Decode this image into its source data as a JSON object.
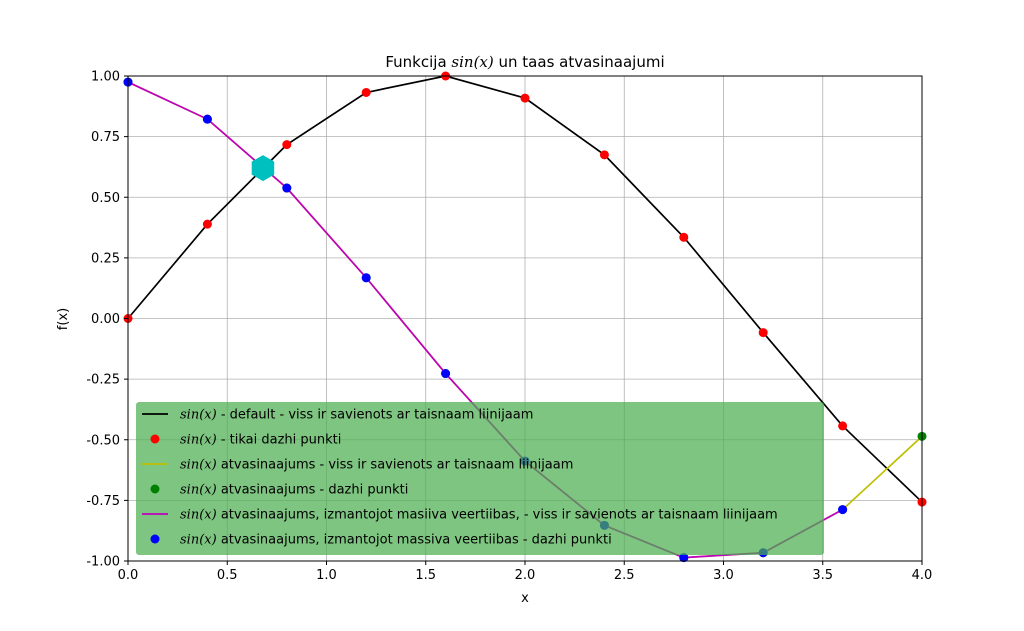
{
  "chart_data": {
    "type": "line",
    "title_prefix": "Funkcija ",
    "title_math": "sin(x)",
    "title_suffix": " un taas atvasinaajumi",
    "xlabel": "x",
    "ylabel": "f(x)",
    "xlim": [
      0.0,
      4.0
    ],
    "ylim": [
      -1.0,
      1.0
    ],
    "xticks": [
      "0.0",
      "0.5",
      "1.0",
      "1.5",
      "2.0",
      "2.5",
      "3.0",
      "3.5",
      "4.0"
    ],
    "yticks": [
      "1.00",
      "0.75",
      "0.50",
      "0.25",
      "0.00",
      "-0.25",
      "-0.50",
      "-0.75",
      "-1.00"
    ],
    "grid": true,
    "legend_position": "lower-left",
    "legend_background": "#4CAF50",
    "series": [
      {
        "label_math": "sin(x)",
        "label_text": " - default - viss ir savienots ar taisnaam liinijaam",
        "style": "line",
        "color": "#000000",
        "x": [
          0.0,
          0.4,
          0.8,
          1.2,
          1.6,
          2.0,
          2.4,
          2.8,
          3.2,
          3.6,
          4.0
        ],
        "y": [
          0.0,
          0.389,
          0.717,
          0.932,
          1.0,
          0.909,
          0.675,
          0.335,
          -0.058,
          -0.443,
          -0.757
        ]
      },
      {
        "label_math": "sin(x)",
        "label_text": " - tikai dazhi punkti",
        "style": "markers",
        "color": "#ff0000",
        "x": [
          0.0,
          0.4,
          0.8,
          1.2,
          1.6,
          2.0,
          2.4,
          2.8,
          3.2,
          3.6,
          4.0
        ],
        "y": [
          0.0,
          0.389,
          0.717,
          0.932,
          1.0,
          0.909,
          0.675,
          0.335,
          -0.058,
          -0.443,
          -0.757
        ]
      },
      {
        "label_math": "sin(x)",
        "label_text": " atvasinaajums - viss ir savienots ar taisnaam liinijaam",
        "style": "line",
        "color": "#bfbf00",
        "x": [
          0.0,
          0.4,
          0.8,
          1.2,
          1.6,
          2.0,
          2.4,
          2.8,
          3.2,
          3.6,
          4.0
        ],
        "y": [
          0.975,
          0.822,
          0.538,
          0.168,
          -0.227,
          -0.588,
          -0.853,
          -0.986,
          -0.966,
          -0.788,
          -0.486
        ]
      },
      {
        "label_math": "sin(x)",
        "label_text": " atvasinaajums - dazhi punkti",
        "style": "markers",
        "color": "#008000",
        "x": [
          0.0,
          0.4,
          0.8,
          1.2,
          1.6,
          2.0,
          2.4,
          2.8,
          3.2,
          3.6,
          4.0
        ],
        "y": [
          0.975,
          0.822,
          0.538,
          0.168,
          -0.227,
          -0.588,
          -0.853,
          -0.986,
          -0.966,
          -0.788,
          -0.486
        ]
      },
      {
        "label_math": "sin(x)",
        "label_text": " atvasinaajums, izmantojot masiiva veertiibas, - viss ir savienots ar taisnaam liinijaam",
        "style": "line",
        "color": "#bf00bf",
        "x": [
          0.0,
          0.4,
          0.8,
          1.2,
          1.6,
          2.0,
          2.4,
          2.8,
          3.2,
          3.6
        ],
        "y": [
          0.975,
          0.822,
          0.538,
          0.168,
          -0.227,
          -0.588,
          -0.853,
          -0.986,
          -0.966,
          -0.788
        ]
      },
      {
        "label_math": "sin(x)",
        "label_text": " atvasinaajums, izmantojot massiva veertiibas - dazhi punkti",
        "style": "markers",
        "color": "#0000ff",
        "x": [
          0.0,
          0.4,
          0.8,
          1.2,
          1.6,
          2.0,
          2.4,
          2.8,
          3.2,
          3.6
        ],
        "y": [
          0.975,
          0.822,
          0.538,
          0.168,
          -0.227,
          -0.588,
          -0.853,
          -0.986,
          -0.966,
          -0.788
        ]
      }
    ],
    "highlight": {
      "shape": "hexagon",
      "color": "#00bfbf",
      "x": 0.68,
      "y": 0.62
    }
  }
}
